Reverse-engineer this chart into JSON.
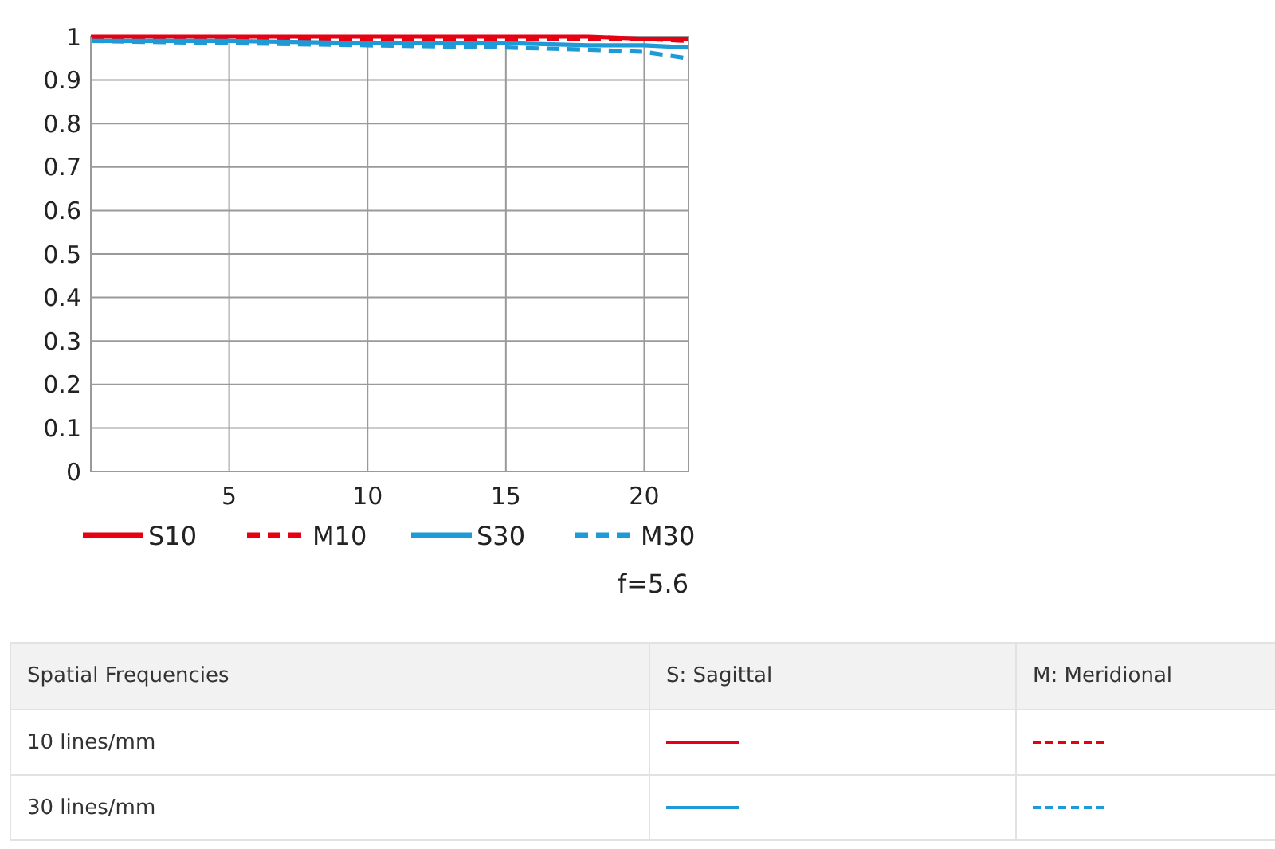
{
  "chart_data": {
    "type": "line",
    "x": [
      0,
      5,
      10,
      15,
      18,
      20,
      21.6
    ],
    "series": [
      {
        "name": "S10",
        "color": "#e60012",
        "line_style": "solid",
        "values": [
          1,
          1,
          1,
          1,
          1,
          0.995,
          0.995
        ]
      },
      {
        "name": "M10",
        "color": "#e60012",
        "line_style": "dashed",
        "values": [
          0.995,
          0.995,
          0.995,
          0.995,
          0.995,
          0.995,
          0.99
        ]
      },
      {
        "name": "S30",
        "color": "#1e9ad6",
        "line_style": "solid",
        "values": [
          0.99,
          0.99,
          0.985,
          0.985,
          0.98,
          0.98,
          0.975
        ]
      },
      {
        "name": "M30",
        "color": "#1e9ad6",
        "line_style": "dashed",
        "values": [
          0.99,
          0.985,
          0.98,
          0.975,
          0.97,
          0.965,
          0.95
        ]
      }
    ],
    "xlim": [
      0,
      21.6
    ],
    "xticks": [
      5,
      10,
      15,
      20
    ],
    "ylim": [
      0,
      1
    ],
    "yticks": [
      0,
      0.1,
      0.2,
      0.3,
      0.4,
      0.5,
      0.6,
      0.7,
      0.8,
      0.9,
      1
    ],
    "grid": true,
    "legend": "bottom",
    "annotations": [
      "f=5.6",
      "Spatial Frequencies",
      "S: Sagittal",
      "M: Meridional",
      "10 lines/mm",
      "30 lines/mm"
    ]
  }
}
